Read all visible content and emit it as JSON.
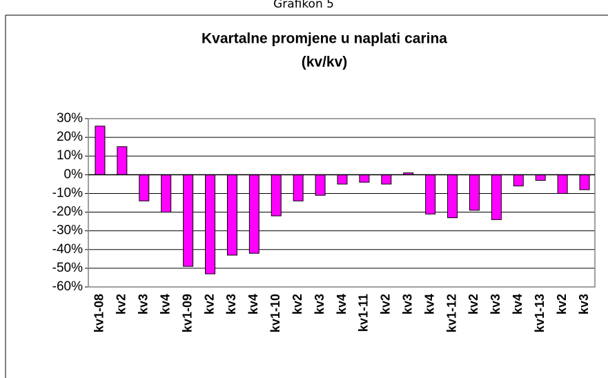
{
  "caption": "Grafikon 5",
  "chart_data": {
    "type": "bar",
    "title": "Kvartalne promjene u naplati carina",
    "subtitle": "(kv/kv)",
    "categories": [
      "kv1-08",
      "kv2",
      "kv3",
      "kv4",
      "kv1-09",
      "kv2",
      "kv3",
      "kv4",
      "kv1-10",
      "kv2",
      "kv3",
      "kv4",
      "kv1-11",
      "kv2",
      "kv3",
      "kv4",
      "kv1-12",
      "kv2",
      "kv3",
      "kv4",
      "kv1-13",
      "kv2",
      "kv3"
    ],
    "values": [
      26,
      15,
      -14,
      -20,
      -49,
      -53,
      -43,
      -42,
      -22,
      -14,
      -11,
      -5,
      -4,
      -5,
      1,
      -21,
      -23,
      -19,
      -24,
      -6,
      -3,
      -10,
      -8
    ],
    "color": "#ff00ff",
    "ylim": [
      -60,
      30
    ],
    "yticks": [
      {
        "value": 30,
        "label": "30%"
      },
      {
        "value": 20,
        "label": "20%"
      },
      {
        "value": 10,
        "label": "10%"
      },
      {
        "value": 0,
        "label": "0%"
      },
      {
        "value": -10,
        "label": "-10%"
      },
      {
        "value": -20,
        "label": "-20%"
      },
      {
        "value": -30,
        "label": "-30%"
      },
      {
        "value": -40,
        "label": "-40%"
      },
      {
        "value": -50,
        "label": "-50%"
      },
      {
        "value": -60,
        "label": "-60%"
      }
    ],
    "grid": true
  }
}
